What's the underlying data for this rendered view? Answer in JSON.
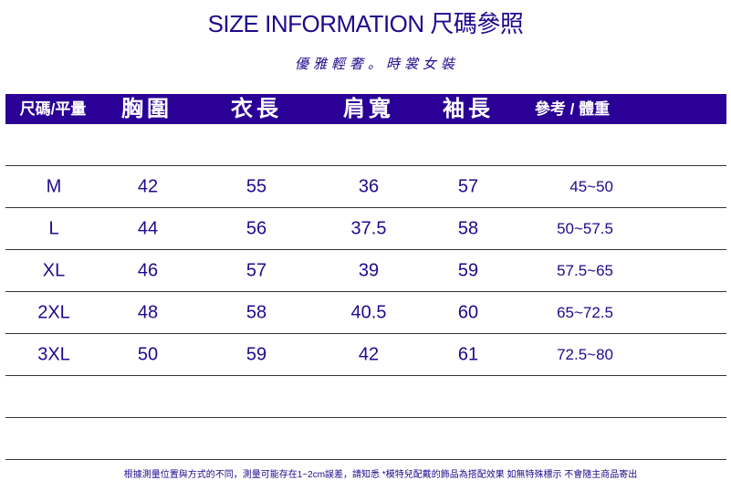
{
  "title": "SIZE INFORMATION 尺碼參照",
  "subtitle": "優雅輕奢。時裳女裝",
  "header": [
    "尺碼/平量",
    "胸圍",
    "衣長",
    "肩寬",
    "袖長",
    "參考 / 體重"
  ],
  "rows": [
    [
      "M",
      "42",
      "55",
      "36",
      "57",
      "45~50"
    ],
    [
      "L",
      "44",
      "56",
      "37.5",
      "58",
      "50~57.5"
    ],
    [
      "XL",
      "46",
      "57",
      "39",
      "59",
      "57.5~65"
    ],
    [
      "2XL",
      "48",
      "58",
      "40.5",
      "60",
      "65~72.5"
    ],
    [
      "3XL",
      "50",
      "59",
      "42",
      "61",
      "72.5~80"
    ]
  ],
  "footnote": "根據測量位置與方式的不同，測量可能存在1~2cm誤差，請知悉 *模特兒配戴的飾品為搭配效果 如無特殊標示 不會隨主商品寄出",
  "colors": {
    "header_bg": "#2a0096",
    "text": "#1f0a8c"
  }
}
